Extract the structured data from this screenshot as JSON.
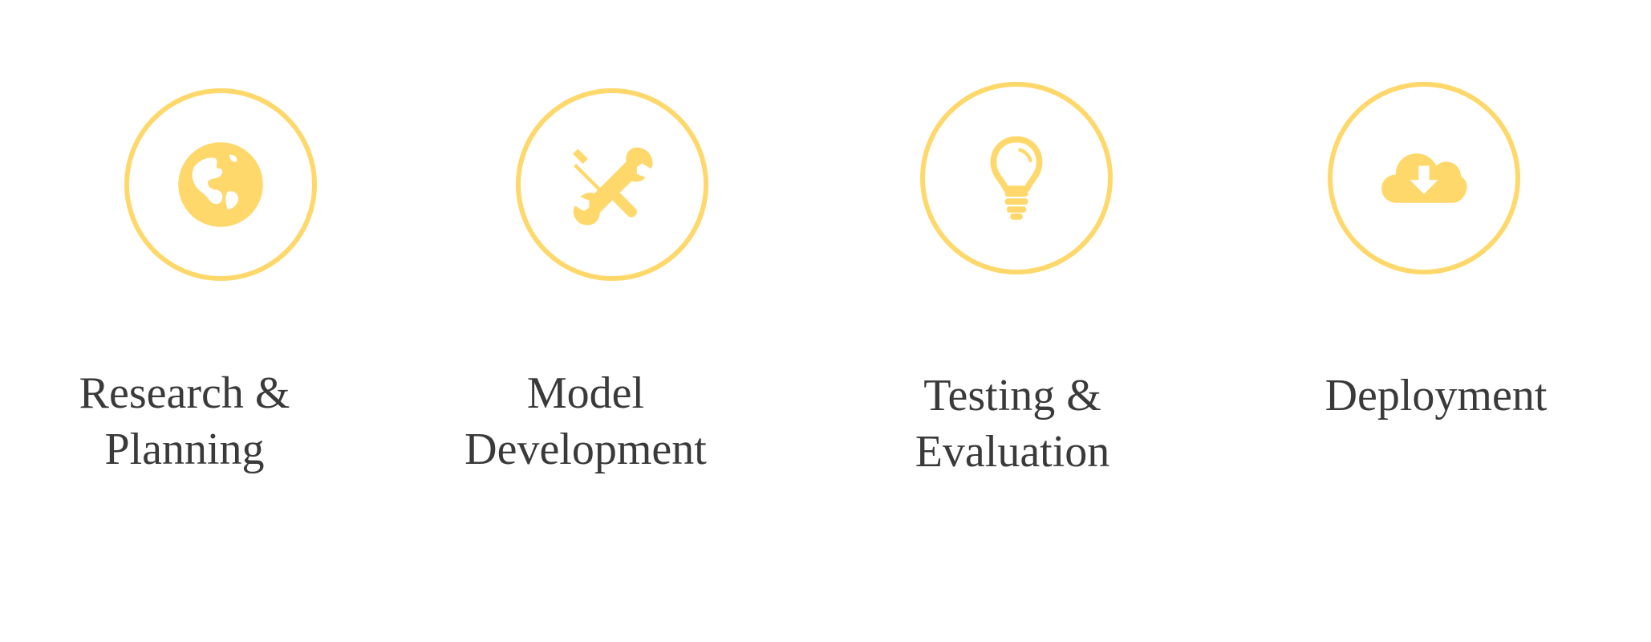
{
  "accent_color": "#ffd86b",
  "text_color": "#3a3a3a",
  "steps": [
    {
      "icon": "globe-icon",
      "label_line1": "Research &",
      "label_line2": "Planning"
    },
    {
      "icon": "wrench-screwdriver-icon",
      "label_line1": "Model",
      "label_line2": "Development"
    },
    {
      "icon": "lightbulb-icon",
      "label_line1": "Testing &",
      "label_line2": "Evaluation"
    },
    {
      "icon": "cloud-download-icon",
      "label_line1": "Deployment",
      "label_line2": ""
    }
  ]
}
